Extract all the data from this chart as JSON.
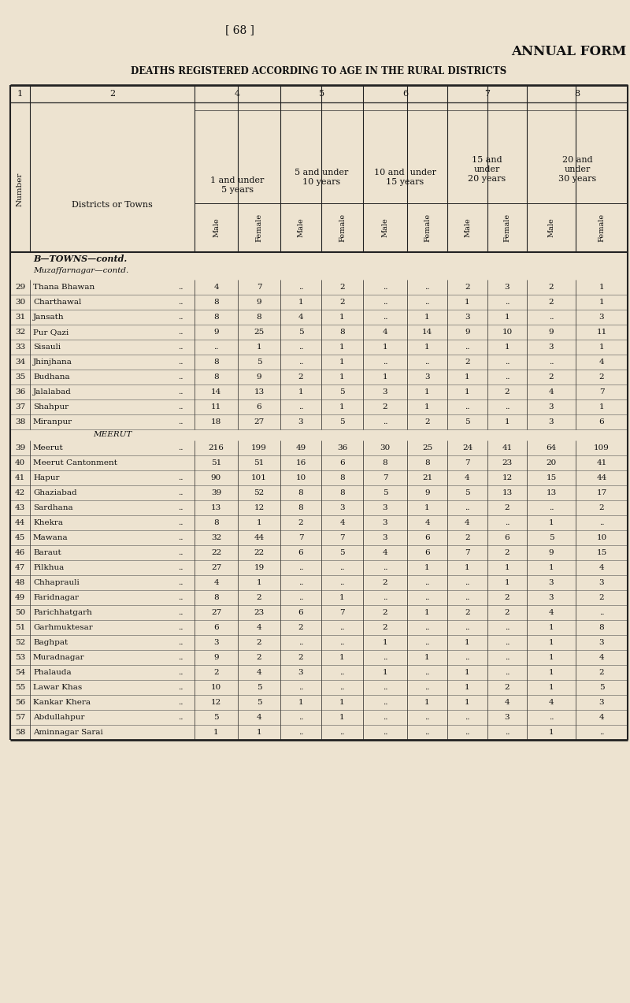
{
  "page_num": "[ 68 ]",
  "title1": "ANNUAL FORM",
  "title2": "DEATHS REGISTERED ACCORDING TO AGE IN THE RURAL DISTRICTS",
  "bg_color": "#ede3d0",
  "text_color": "#1a1a1a",
  "line_color": "#222222",
  "rows": [
    {
      "num": "29",
      "name": "Thana Bhawan",
      "dots": "..",
      "m4": "4",
      "f4": "7",
      "m5": "..",
      "f5": "2",
      "m6": "..",
      "f6": "..",
      "m7": "2",
      "f7": "3",
      "m8": "2",
      "f8": "1"
    },
    {
      "num": "30",
      "name": "Charthawal",
      "dots": "..",
      "m4": "8",
      "f4": "9",
      "m5": "1",
      "f5": "2",
      "m6": "..",
      "f6": "..",
      "m7": "1",
      "f7": "..",
      "m8": "2",
      "f8": "1"
    },
    {
      "num": "31",
      "name": "Jansath",
      "dots": "..",
      "m4": "8",
      "f4": "8",
      "m5": "4",
      "f5": "1",
      "m6": "..",
      "f6": "1",
      "m7": "3",
      "f7": "1",
      "m8": "..",
      "f8": "3"
    },
    {
      "num": "32",
      "name": "Pur Qazi",
      "dots": "..",
      "m4": "9",
      "f4": "25",
      "m5": "5",
      "f5": "8",
      "m6": "4",
      "f6": "14",
      "m7": "9",
      "f7": "10",
      "m8": "9",
      "f8": "11"
    },
    {
      "num": "33",
      "name": "Sisauli",
      "dots": "..",
      "m4": "..",
      "f4": "1",
      "m5": "..",
      "f5": "1",
      "m6": "1",
      "f6": "1",
      "m7": "..",
      "f7": "1",
      "m8": "3",
      "f8": "1"
    },
    {
      "num": "34",
      "name": "Jhinjhana",
      "dots": "..",
      "m4": "8",
      "f4": "5",
      "m5": "..",
      "f5": "1",
      "m6": "..",
      "f6": "..",
      "m7": "2",
      "f7": "..",
      "m8": "..",
      "f8": "4"
    },
    {
      "num": "35",
      "name": "Budhana",
      "dots": "..",
      "m4": "8",
      "f4": "9",
      "m5": "2",
      "f5": "1",
      "m6": "1",
      "f6": "3",
      "m7": "1",
      "f7": "..",
      "m8": "2",
      "f8": "2"
    },
    {
      "num": "36",
      "name": "Jalalabad",
      "dots": "..",
      "m4": "14",
      "f4": "13",
      "m5": "1",
      "f5": "5",
      "m6": "3",
      "f6": "1",
      "m7": "1",
      "f7": "2",
      "m8": "4",
      "f8": "7"
    },
    {
      "num": "37",
      "name": "Shahpur",
      "dots": "..",
      "m4": "11",
      "f4": "6",
      "m5": "..",
      "f5": "1",
      "m6": "2",
      "f6": "1",
      "m7": "..",
      "f7": "..",
      "m8": "3",
      "f8": "1"
    },
    {
      "num": "38",
      "name": "Miranpur",
      "dots": "..",
      "m4": "18",
      "f4": "27",
      "m5": "3",
      "f5": "5",
      "m6": "..",
      "f6": "2",
      "m7": "5",
      "f7": "1",
      "m8": "3",
      "f8": "6"
    },
    {
      "num": "39",
      "name": "Meerut",
      "dots": "..",
      "m4": "216",
      "f4": "199",
      "m5": "49",
      "f5": "36",
      "m6": "30",
      "f6": "25",
      "m7": "24",
      "f7": "41",
      "m8": "64",
      "f8": "109"
    },
    {
      "num": "40",
      "name": "Meerut Cantonment",
      "dots": "",
      "m4": "51",
      "f4": "51",
      "m5": "16",
      "f5": "6",
      "m6": "8",
      "f6": "8",
      "m7": "7",
      "f7": "23",
      "m8": "20",
      "f8": "41"
    },
    {
      "num": "41",
      "name": "Hapur",
      "dots": "..",
      "m4": "90",
      "f4": "101",
      "m5": "10",
      "f5": "8",
      "m6": "7",
      "f6": "21",
      "m7": "4",
      "f7": "12",
      "m8": "15",
      "f8": "44"
    },
    {
      "num": "42",
      "name": "Ghaziabad",
      "dots": "..",
      "m4": "39",
      "f4": "52",
      "m5": "8",
      "f5": "8",
      "m6": "5",
      "f6": "9",
      "m7": "5",
      "f7": "13",
      "m8": "13",
      "f8": "17"
    },
    {
      "num": "43",
      "name": "Sardhana",
      "dots": "..",
      "m4": "13",
      "f4": "12",
      "m5": "8",
      "f5": "3",
      "m6": "3",
      "f6": "1",
      "m7": "..",
      "f7": "2",
      "m8": "..",
      "f8": "2"
    },
    {
      "num": "44",
      "name": "Khekra",
      "dots": "..",
      "m4": "8",
      "f4": "1",
      "m5": "2",
      "f5": "4",
      "m6": "3",
      "f6": "4",
      "m7": "4",
      "f7": "..",
      "m8": "1",
      "f8": ".."
    },
    {
      "num": "45",
      "name": "Mawana",
      "dots": "..",
      "m4": "32",
      "f4": "44",
      "m5": "7",
      "f5": "7",
      "m6": "3",
      "f6": "6",
      "m7": "2",
      "f7": "6",
      "m8": "5",
      "f8": "10"
    },
    {
      "num": "46",
      "name": "Baraut",
      "dots": "..",
      "m4": "22",
      "f4": "22",
      "m5": "6",
      "f5": "5",
      "m6": "4",
      "f6": "6",
      "m7": "7",
      "f7": "2",
      "m8": "9",
      "f8": "15"
    },
    {
      "num": "47",
      "name": "Pilkhua",
      "dots": "..",
      "m4": "27",
      "f4": "19",
      "m5": "..",
      "f5": "..",
      "m6": "..",
      "f6": "1",
      "m7": "1",
      "f7": "1",
      "m8": "1",
      "f8": "4"
    },
    {
      "num": "48",
      "name": "Chhaprauli",
      "dots": "..",
      "m4": "4",
      "f4": "1",
      "m5": "..",
      "f5": "..",
      "m6": "2",
      "f6": "..",
      "m7": "..",
      "f7": "1",
      "m8": "3",
      "f8": "3"
    },
    {
      "num": "49",
      "name": "Faridnagar",
      "dots": "..",
      "m4": "8",
      "f4": "2",
      "m5": "..",
      "f5": "1",
      "m6": "..",
      "f6": "..",
      "m7": "..",
      "f7": "2",
      "m8": "3",
      "f8": "2"
    },
    {
      "num": "50",
      "name": "Parichhatgarh",
      "dots": "..",
      "m4": "27",
      "f4": "23",
      "m5": "6",
      "f5": "7",
      "m6": "2",
      "f6": "1",
      "m7": "2",
      "f7": "2",
      "m8": "4",
      "f8": ".."
    },
    {
      "num": "51",
      "name": "Garhmuktesar",
      "dots": "..",
      "m4": "6",
      "f4": "4",
      "m5": "2",
      "f5": "..",
      "m6": "2",
      "f6": "..",
      "m7": "..",
      "f7": "..",
      "m8": "1",
      "f8": "8"
    },
    {
      "num": "52",
      "name": "Baghpat",
      "dots": "..",
      "m4": "3",
      "f4": "2",
      "m5": "..",
      "f5": "..",
      "m6": "1",
      "f6": "..",
      "m7": "1",
      "f7": "..",
      "m8": "1",
      "f8": "3"
    },
    {
      "num": "53",
      "name": "Muradnagar",
      "dots": "..",
      "m4": "9",
      "f4": "2",
      "m5": "2",
      "f5": "1",
      "m6": "..",
      "f6": "1",
      "m7": "..",
      "f7": "..",
      "m8": "1",
      "f8": "4"
    },
    {
      "num": "54",
      "name": "Phalauda",
      "dots": "..",
      "m4": "2",
      "f4": "4",
      "m5": "3",
      "f5": "..",
      "m6": "1",
      "f6": "..",
      "m7": "1",
      "f7": "..",
      "m8": "1",
      "f8": "2"
    },
    {
      "num": "55",
      "name": "Lawar Khas",
      "dots": "..",
      "m4": "10",
      "f4": "5",
      "m5": "..",
      "f5": "..",
      "m6": "..",
      "f6": "..",
      "m7": "1",
      "f7": "2",
      "m8": "1",
      "f8": "5"
    },
    {
      "num": "56",
      "name": "Kankar Khera",
      "dots": "..",
      "m4": "12",
      "f4": "5",
      "m5": "1",
      "f5": "1",
      "m6": "..",
      "f6": "1",
      "m7": "1",
      "f7": "4",
      "m8": "4",
      "f8": "3"
    },
    {
      "num": "57",
      "name": "Abdullahpur",
      "dots": "..",
      "m4": "5",
      "f4": "4",
      "m5": "..",
      "f5": "1",
      "m6": "..",
      "f6": "..",
      "m7": "..",
      "f7": "3",
      "m8": "..",
      "f8": "4"
    },
    {
      "num": "58",
      "name": "Aminnagar Sarai",
      "dots": "",
      "m4": "1",
      "f4": "1",
      "m5": "..",
      "f5": "..",
      "m6": "..",
      "f6": "..",
      "m7": "..",
      "f7": "..",
      "m8": "1",
      "f8": ".."
    }
  ]
}
